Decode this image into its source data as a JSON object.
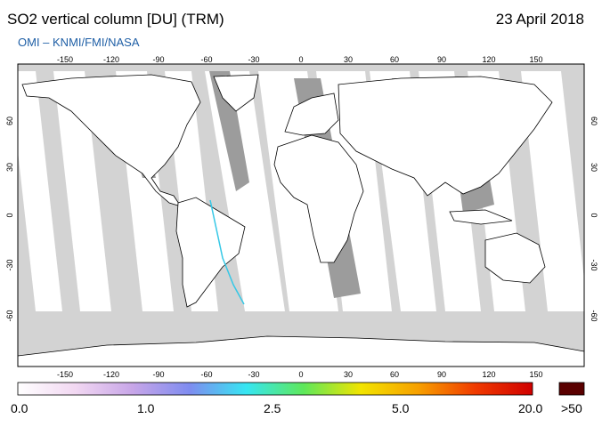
{
  "header": {
    "title": "SO2 vertical column [DU] (TRM)",
    "subtitle": "OMI  –  KNMI/FMI/NASA",
    "date": "23 April 2018"
  },
  "colors": {
    "subtitle": "#1f5fa6",
    "water": "#d3d3d3",
    "land": "#ffffff",
    "satellite_gap": "#9c9c9c"
  },
  "map": {
    "longitude_ticks": [
      "-150",
      "-120",
      "-90",
      "-60",
      "-30",
      "0",
      "30",
      "60",
      "90",
      "120",
      "150"
    ],
    "latitude_ticks": [
      "60",
      "30",
      "0",
      "-30",
      "-60"
    ]
  },
  "colorbar": {
    "labels": [
      "0.0",
      "1.0",
      "2.5",
      "5.0",
      "20.0"
    ],
    "overflow_label": ">50",
    "stops": [
      "#ffffff",
      "#f2d8f2",
      "#c8a6e8",
      "#7f8cf0",
      "#36e6f2",
      "#5ee85a",
      "#f2e400",
      "#f7a000",
      "#f03a00",
      "#d00000"
    ],
    "overflow_color": "#5a0000"
  }
}
